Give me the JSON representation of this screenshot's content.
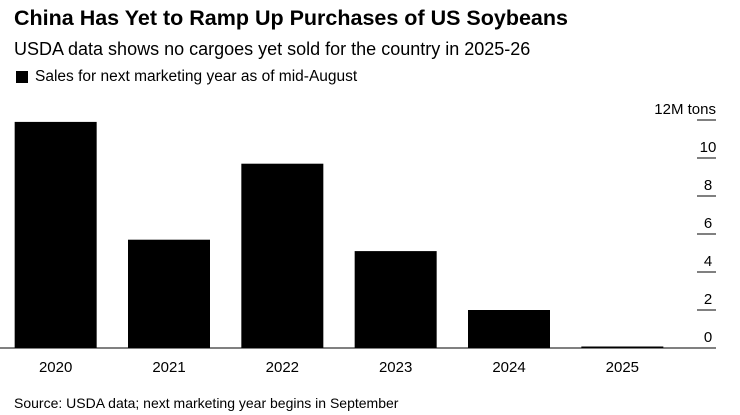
{
  "header": {
    "title": "China Has Yet to Ramp Up Purchases of US Soybeans",
    "subtitle": "USDA data shows no cargoes yet sold for the country in 2025-26"
  },
  "legend": {
    "label": "Sales for next marketing year as of mid-August",
    "color": "#000000"
  },
  "footer": {
    "source": "Source: USDA data; next marketing year begins in September"
  },
  "chart_data": {
    "type": "bar",
    "categories": [
      "2020",
      "2021",
      "2022",
      "2023",
      "2024",
      "2025"
    ],
    "values": [
      11.9,
      5.7,
      9.7,
      5.1,
      2.0,
      0.02
    ],
    "unit_label": "12M tons",
    "yticks": [
      0,
      2,
      4,
      6,
      8,
      10
    ],
    "ylim": [
      0,
      12
    ],
    "bar_color": "#000000",
    "grid": false,
    "axis_side": "right"
  }
}
